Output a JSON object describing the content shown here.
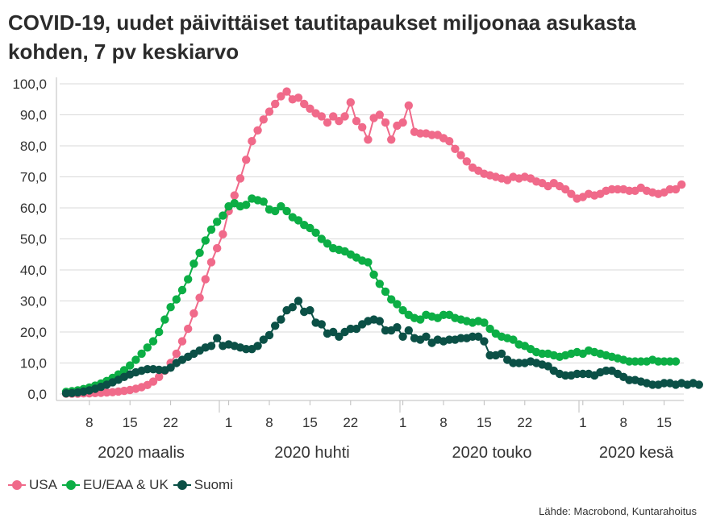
{
  "title": "COVID-19, uudet päivittäiset tautitapaukset miljoonaa asukasta kohden, 7 pv keskiarvo",
  "source": "Lähde: Macrobond, Kuntarahoitus",
  "chart_data": {
    "type": "line",
    "title": "COVID-19, uudet päivittäiset tautitapaukset miljoonaa asukasta kohden, 7 pv keskiarvo",
    "x_start": "2020-03-04",
    "ylim": [
      0,
      100
    ],
    "y_ticks": [
      "0,0",
      "10,0",
      "20,0",
      "30,0",
      "40,0",
      "50,0",
      "60,0",
      "70,0",
      "80,0",
      "90,0",
      "100,0"
    ],
    "x_tick_labels": [
      "8",
      "15",
      "22",
      "1",
      "8",
      "15",
      "22",
      "1",
      "8",
      "15",
      "22",
      "1",
      "8",
      "15"
    ],
    "x_tick_days": [
      4,
      11,
      18,
      28,
      35,
      42,
      49,
      58,
      65,
      72,
      79,
      89,
      96,
      103
    ],
    "month_labels": [
      "2020 maalis",
      "2020 huhti",
      "2020 touko",
      "2020 kesä"
    ],
    "grid": true,
    "legend_position": "bottom-left",
    "series": [
      {
        "name": "USA",
        "color": "#f06a8a",
        "values": [
          0.1,
          0.1,
          0.1,
          0.2,
          0.2,
          0.3,
          0.4,
          0.5,
          0.6,
          0.8,
          1.0,
          1.3,
          1.7,
          2.2,
          2.9,
          4.0,
          5.5,
          7.5,
          10.0,
          13.0,
          17.0,
          21.0,
          26.0,
          31.0,
          37.0,
          42.5,
          47.0,
          51.5,
          59.0,
          64.0,
          69.5,
          75.5,
          81.5,
          85.0,
          88.5,
          91.0,
          93.5,
          96.0,
          97.5,
          95.0,
          95.5,
          93.5,
          92.0,
          90.5,
          89.5,
          87.5,
          89.5,
          88.0,
          89.5,
          94.0,
          88.0,
          86.0,
          82.0,
          89.0,
          90.0,
          87.5,
          82.0,
          86.5,
          87.5,
          93.0,
          84.5,
          84.0,
          84.0,
          83.5,
          83.5,
          82.5,
          81.5,
          79.0,
          77.0,
          75.0,
          73.0,
          72.0,
          71.0,
          70.5,
          70.0,
          69.5,
          69.0,
          70.0,
          69.5,
          70.0,
          69.5,
          68.5,
          68.0,
          67.0,
          68.0,
          67.0,
          66.0,
          64.5,
          63.0,
          63.5,
          64.5,
          64.0,
          64.5,
          65.5,
          66.0,
          66.0,
          66.0,
          65.5,
          65.5,
          66.5,
          65.5,
          65.0,
          64.5,
          65.0,
          66.0,
          66.0,
          67.5
        ]
      },
      {
        "name": "EU/EAA & UK",
        "color": "#0cae45",
        "values": [
          0.7,
          0.9,
          1.2,
          1.6,
          2.1,
          2.7,
          3.4,
          4.2,
          5.2,
          6.3,
          7.7,
          9.2,
          11.0,
          13.0,
          15.0,
          17.0,
          20.0,
          24.0,
          28.0,
          30.5,
          33.5,
          37.0,
          42.0,
          45.5,
          49.5,
          53.0,
          55.5,
          57.5,
          60.5,
          61.5,
          60.5,
          61.0,
          63.0,
          62.5,
          62.0,
          59.5,
          59.0,
          60.5,
          59.0,
          57.0,
          56.0,
          54.5,
          53.5,
          52.0,
          50.0,
          48.5,
          47.0,
          46.5,
          46.0,
          45.0,
          44.0,
          43.0,
          42.5,
          38.5,
          35.5,
          33.0,
          30.5,
          29.0,
          27.0,
          25.5,
          24.5,
          24.0,
          25.5,
          25.0,
          24.5,
          25.5,
          25.5,
          24.5,
          24.0,
          23.5,
          23.0,
          23.5,
          23.0,
          21.0,
          19.5,
          18.5,
          18.0,
          17.5,
          16.0,
          15.5,
          14.5,
          13.5,
          13.0,
          13.0,
          12.5,
          12.0,
          12.5,
          13.0,
          13.5,
          13.0,
          14.0,
          13.5,
          13.0,
          12.5,
          12.0,
          11.5,
          11.0,
          10.5,
          10.5,
          10.5,
          10.5,
          11.0,
          10.5,
          10.5,
          10.5,
          10.5
        ]
      },
      {
        "name": "Suomi",
        "color": "#0b5046",
        "values": [
          0.2,
          0.3,
          0.5,
          0.8,
          1.2,
          1.7,
          2.3,
          3.0,
          3.8,
          4.6,
          5.5,
          6.3,
          7.0,
          7.5,
          8.0,
          8.0,
          7.8,
          7.7,
          8.5,
          10.0,
          11.0,
          12.0,
          13.0,
          14.0,
          15.0,
          15.5,
          18.0,
          15.5,
          16.0,
          15.5,
          15.0,
          14.5,
          14.5,
          15.5,
          17.5,
          19.0,
          22.0,
          24.0,
          27.0,
          28.0,
          30.0,
          26.5,
          27.0,
          23.0,
          22.5,
          19.5,
          20.0,
          18.5,
          20.0,
          21.0,
          21.0,
          22.5,
          23.5,
          24.0,
          23.5,
          20.5,
          20.5,
          21.5,
          18.5,
          20.5,
          18.0,
          17.5,
          18.5,
          16.5,
          17.5,
          17.0,
          17.5,
          17.5,
          18.0,
          18.0,
          18.5,
          18.5,
          17.0,
          12.5,
          12.5,
          13.0,
          11.0,
          10.0,
          10.0,
          10.0,
          10.5,
          10.0,
          9.5,
          9.0,
          7.5,
          6.5,
          6.0,
          6.0,
          6.5,
          6.5,
          6.5,
          6.0,
          7.0,
          7.5,
          7.5,
          6.5,
          5.5,
          4.5,
          4.5,
          4.0,
          3.5,
          3.0,
          3.0,
          3.5,
          3.5,
          3.0,
          3.5,
          3.0,
          3.5,
          3.0
        ]
      }
    ]
  }
}
